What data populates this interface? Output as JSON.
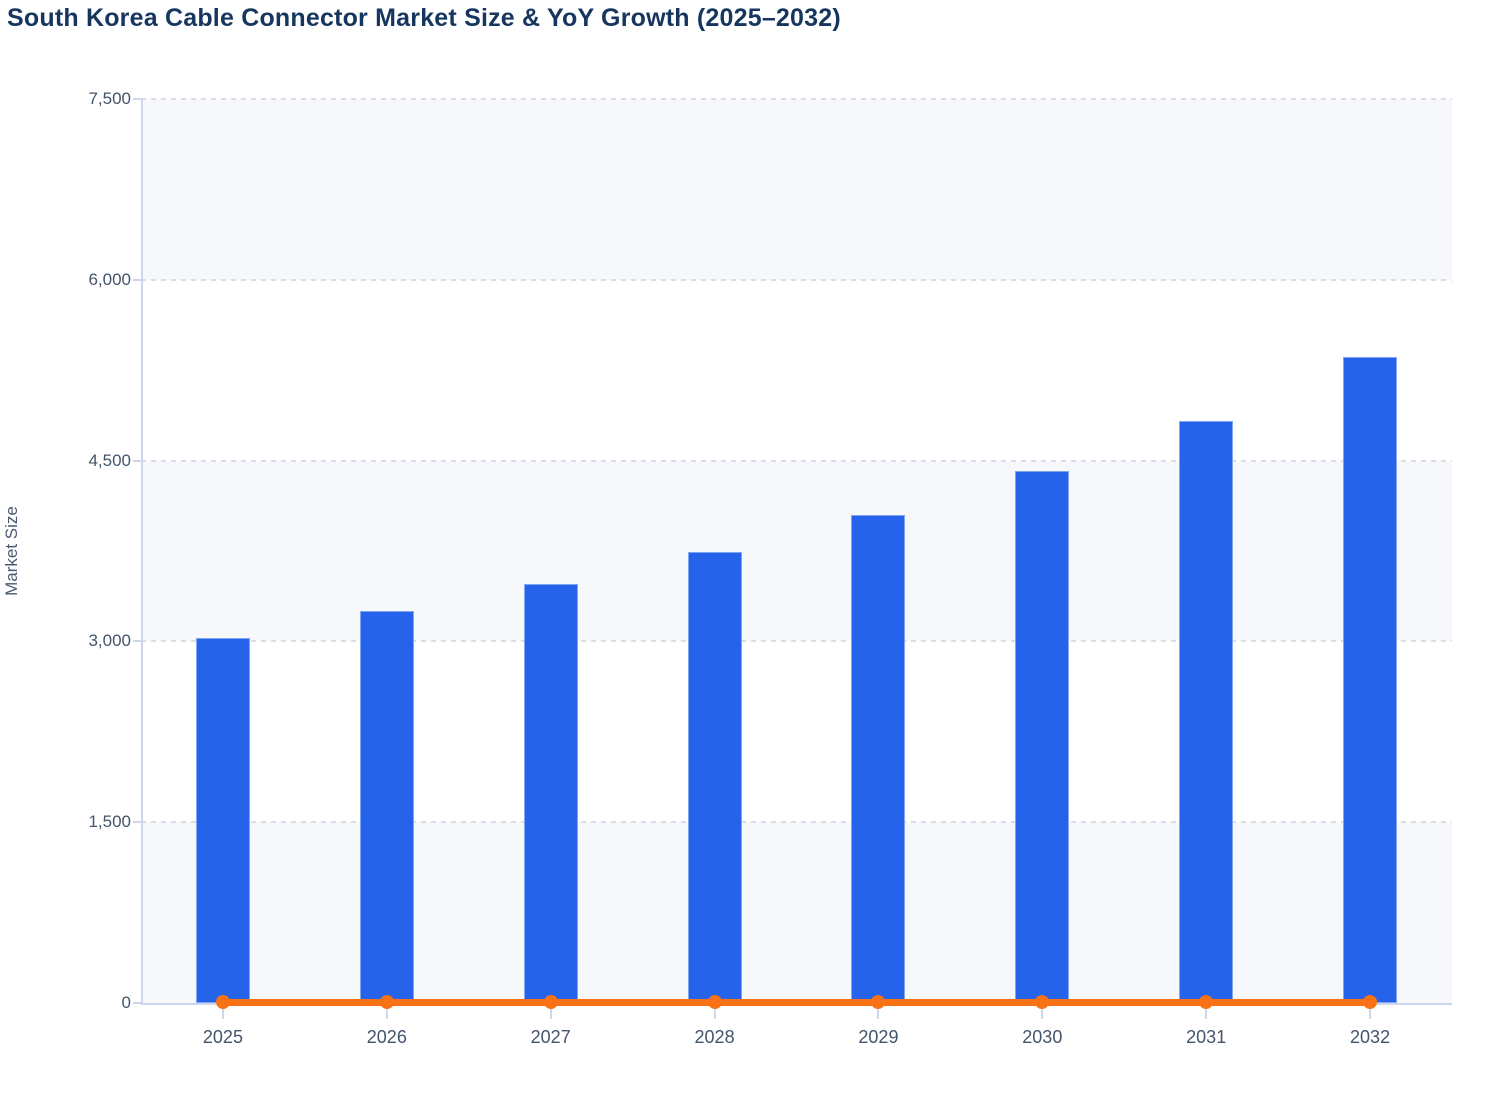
{
  "page": {
    "background": "#ffffff"
  },
  "chart": {
    "title": "South Korea Cable Connector Market Size & YoY Growth (2025–2032)",
    "title_color": "#17365f",
    "y_axis": {
      "label": "Market Size",
      "tick_labels": [
        "0",
        "1,500",
        "3,000",
        "4,500",
        "6,000",
        "7,500"
      ],
      "text_color": "#44546b"
    },
    "x_axis": {
      "tick_labels": [
        "2025",
        "2026",
        "2027",
        "2028",
        "2029",
        "2030",
        "2031",
        "2032"
      ],
      "text_color": "#44546b"
    },
    "colors": {
      "bar_fill": "#2563eb",
      "bar_stroke": "#90b1f3",
      "line_and_markers": "#f97316",
      "axis_line": "#ccd6ee",
      "gridline": "#d9dde6",
      "alternating_band": "#f7f8fb"
    }
  },
  "chart_data": {
    "type": "bar",
    "title": "South Korea Cable Connector Market Size & YoY Growth (2025–2032)",
    "categories": [
      "2025",
      "2026",
      "2027",
      "2028",
      "2029",
      "2030",
      "2031",
      "2032"
    ],
    "series": [
      {
        "name": "Market Size",
        "type": "bar",
        "color": "#2563eb",
        "values": [
          3025,
          3250,
          3475,
          3740,
          4045,
          4410,
          4830,
          5360
        ]
      },
      {
        "name": "YoY Growth",
        "type": "line",
        "color": "#f97316",
        "values_as_read": [
          0,
          0,
          0,
          0,
          0,
          0,
          0,
          0
        ],
        "note": "Growth-percentage line is plotted against the Market Size axis, so it renders as a flat marker line at ≈0 with a dot for every year."
      }
    ],
    "xlabel": "",
    "ylabel": "Market Size",
    "ylim": [
      0,
      7500
    ],
    "yticks": [
      0,
      1500,
      3000,
      4500,
      6000,
      7500
    ],
    "grid": "horizontal dashed gridlines at every 1,500",
    "plot_bands": "alternating light-gray horizontal bands every 1,500 starting at 0",
    "legend": "none"
  }
}
